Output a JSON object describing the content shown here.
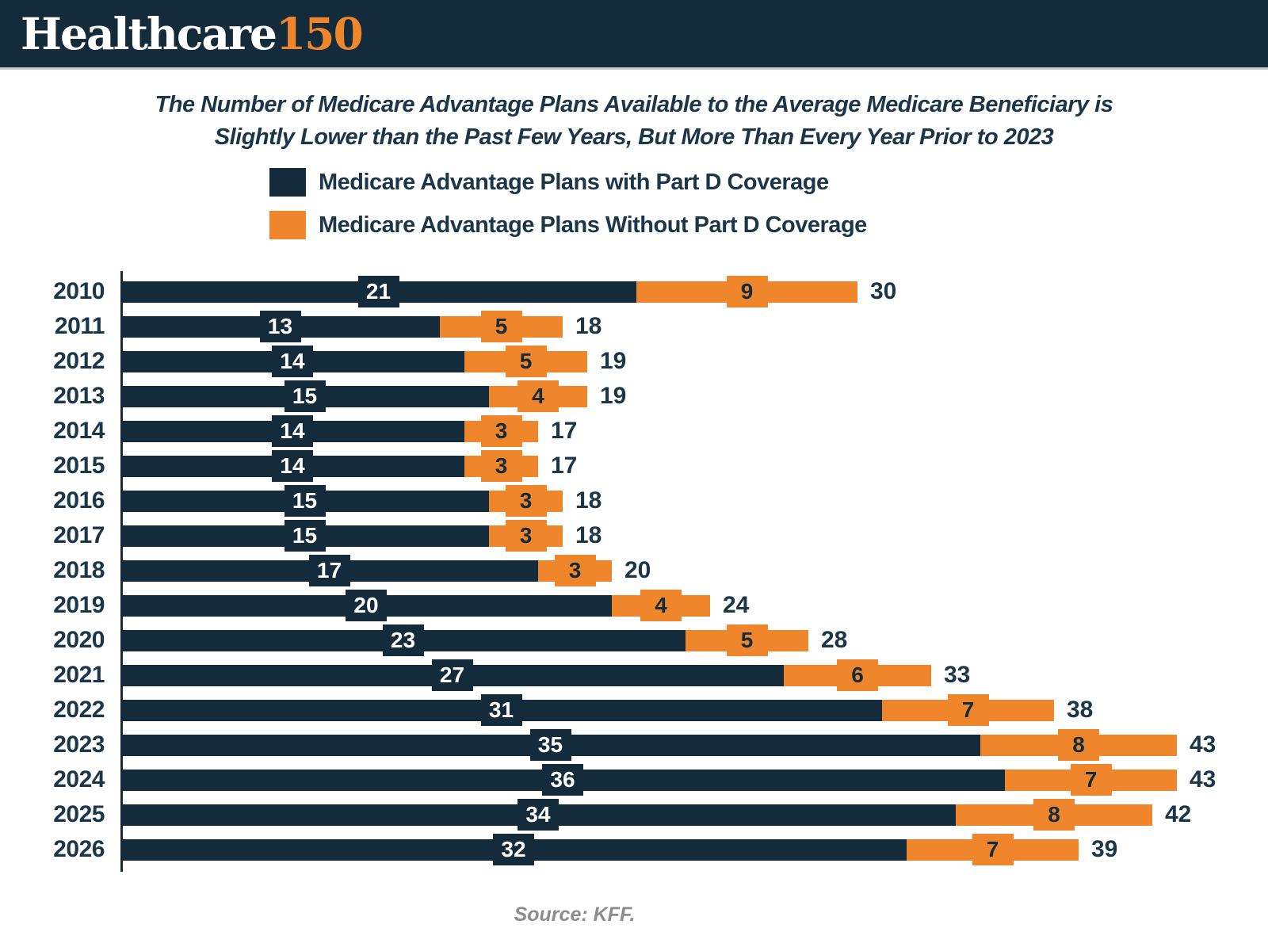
{
  "header": {
    "brand_primary": "Healthcare",
    "brand_accent": "150"
  },
  "title": {
    "line1": "The Number of Medicare Advantage Plans Available to the Average Medicare Beneficiary is",
    "line2": "Slightly Lower than the Past Few Years, But More Than Every Year Prior to 2023"
  },
  "legend": [
    {
      "label": "Medicare Advantage Plans with Part D Coverage",
      "color": "#142B3B"
    },
    {
      "label": "Medicare Advantage Plans Without Part D Coverage",
      "color": "#F0862C"
    }
  ],
  "chart_data": {
    "type": "bar",
    "orientation": "horizontal",
    "stacked": true,
    "categories": [
      "2010",
      "2011",
      "2012",
      "2013",
      "2014",
      "2015",
      "2016",
      "2017",
      "2018",
      "2019",
      "2020",
      "2021",
      "2022",
      "2023",
      "2024",
      "2025",
      "2026"
    ],
    "series": [
      {
        "name": "Medicare Advantage Plans with Part D Coverage",
        "color": "#142B3B",
        "values": [
          21,
          13,
          14,
          15,
          14,
          14,
          15,
          15,
          17,
          20,
          23,
          27,
          31,
          35,
          36,
          34,
          32
        ]
      },
      {
        "name": "Medicare Advantage Plans Without Part D Coverage",
        "color": "#F0862C",
        "values": [
          9,
          5,
          5,
          4,
          3,
          3,
          3,
          3,
          3,
          4,
          5,
          6,
          7,
          8,
          7,
          8,
          7
        ]
      }
    ],
    "totals": [
      30,
      18,
      19,
      19,
      17,
      17,
      18,
      18,
      20,
      24,
      28,
      33,
      38,
      43,
      43,
      42,
      39
    ],
    "xlim": [
      0,
      43
    ],
    "grid": false,
    "legend_position": "top-left",
    "value_labels": "inside-segments-and-total"
  },
  "colors": {
    "navy": "#142B3B",
    "orange": "#F0862C",
    "text_navy": "#1B3648",
    "source_gray": "#8C8C8C",
    "header_border": "#C9C9CF"
  },
  "source": "Source: KFF."
}
